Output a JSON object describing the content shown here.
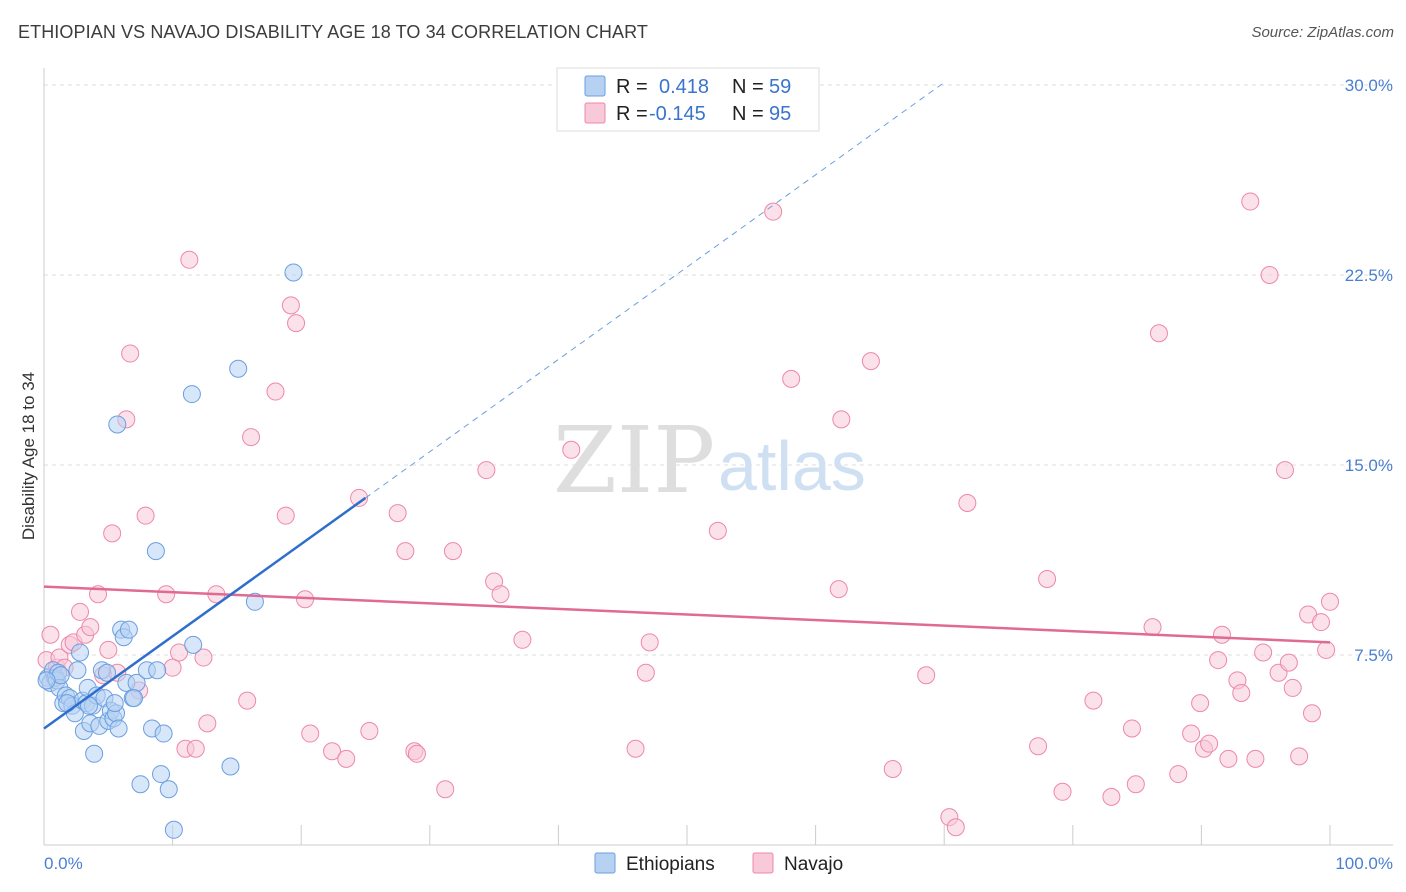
{
  "title": "ETHIOPIAN VS NAVAJO DISABILITY AGE 18 TO 34 CORRELATION CHART",
  "source": "Source: ZipAtlas.com",
  "colors": {
    "ethiopians": "#6a9fe0",
    "ethiopians_fill": "#b7d1f3",
    "ethiopians_line": "#2f6fcc",
    "navajo": "#ee88a8",
    "navajo_fill": "#f8c9d8",
    "navajo_line": "#e06a92",
    "tick_text": "#4a7fd0",
    "grid": "#dddddd"
  },
  "legend": {
    "rows": [
      {
        "r_label": "R =",
        "r_value": "0.418",
        "n_label": "N =",
        "n_value": "59"
      },
      {
        "r_label": "R =",
        "r_value": "-0.145",
        "n_label": "N =",
        "n_value": "95"
      }
    ]
  },
  "watermark": {
    "zip": "ZIP",
    "atlas": "atlas"
  },
  "chart_data": {
    "type": "scatter",
    "title": "ETHIOPIAN VS NAVAJO DISABILITY AGE 18 TO 34 CORRELATION CHART",
    "xlabel": "",
    "ylabel": "Disability Age 18 to 34",
    "xlim": [
      0,
      100
    ],
    "ylim": [
      0,
      30
    ],
    "x_tick_labels": [
      "0.0%",
      "100.0%"
    ],
    "y_ticks": [
      7.5,
      15.0,
      22.5,
      30.0
    ],
    "y_tick_labels": [
      "7.5%",
      "15.0%",
      "22.5%",
      "30.0%"
    ],
    "grid": true,
    "legend_position": "bottom",
    "series": [
      {
        "name": "Ethiopians",
        "r": 0.418,
        "n": 59,
        "trend": {
          "x": [
            0,
            25
          ],
          "y": [
            4.6,
            13.7
          ]
        },
        "trend_extension": {
          "x": [
            25,
            70
          ],
          "y": [
            13.7,
            30.1
          ]
        },
        "points": [
          [
            0.3,
            6.6
          ],
          [
            0.5,
            6.4
          ],
          [
            0.7,
            6.9
          ],
          [
            0.9,
            6.6
          ],
          [
            1.0,
            6.5
          ],
          [
            1.1,
            6.8
          ],
          [
            1.2,
            6.2
          ],
          [
            1.3,
            6.7
          ],
          [
            1.5,
            5.6
          ],
          [
            1.7,
            5.9
          ],
          [
            2.0,
            5.8
          ],
          [
            2.2,
            5.5
          ],
          [
            2.4,
            5.2
          ],
          [
            2.6,
            6.9
          ],
          [
            2.8,
            7.6
          ],
          [
            3.0,
            5.7
          ],
          [
            3.1,
            4.5
          ],
          [
            3.3,
            5.6
          ],
          [
            3.4,
            6.2
          ],
          [
            3.6,
            4.8
          ],
          [
            3.8,
            5.5
          ],
          [
            3.9,
            3.6
          ],
          [
            4.1,
            5.9
          ],
          [
            4.3,
            4.7
          ],
          [
            4.5,
            6.9
          ],
          [
            4.7,
            5.8
          ],
          [
            4.9,
            6.8
          ],
          [
            5.0,
            4.9
          ],
          [
            5.2,
            5.3
          ],
          [
            5.4,
            5.0
          ],
          [
            5.6,
            5.2
          ],
          [
            5.8,
            4.6
          ],
          [
            6.0,
            8.5
          ],
          [
            6.2,
            8.2
          ],
          [
            6.4,
            6.4
          ],
          [
            6.6,
            8.5
          ],
          [
            6.9,
            5.8
          ],
          [
            7.2,
            6.4
          ],
          [
            7.5,
            2.4
          ],
          [
            8.0,
            6.9
          ],
          [
            8.4,
            4.6
          ],
          [
            8.8,
            6.9
          ],
          [
            9.1,
            2.8
          ],
          [
            9.3,
            4.4
          ],
          [
            9.7,
            2.2
          ],
          [
            10.1,
            0.6
          ],
          [
            11.6,
            7.9
          ],
          [
            5.7,
            16.6
          ],
          [
            8.7,
            11.6
          ],
          [
            11.5,
            17.8
          ],
          [
            14.5,
            3.1
          ],
          [
            15.1,
            18.8
          ],
          [
            16.4,
            9.6
          ],
          [
            19.4,
            22.6
          ],
          [
            0.2,
            6.5
          ],
          [
            1.8,
            5.6
          ],
          [
            3.5,
            5.5
          ],
          [
            5.5,
            5.6
          ],
          [
            7.0,
            5.8
          ]
        ]
      },
      {
        "name": "Navajo",
        "r": -0.145,
        "n": 95,
        "trend": {
          "x": [
            0,
            100
          ],
          "y": [
            10.2,
            8.0
          ]
        },
        "points": [
          [
            0.2,
            7.3
          ],
          [
            0.5,
            8.3
          ],
          [
            0.8,
            6.6
          ],
          [
            1.0,
            7.0
          ],
          [
            1.2,
            7.4
          ],
          [
            1.6,
            7.0
          ],
          [
            2.0,
            7.9
          ],
          [
            2.3,
            8.0
          ],
          [
            2.8,
            9.2
          ],
          [
            3.2,
            8.3
          ],
          [
            3.6,
            8.6
          ],
          [
            4.2,
            9.9
          ],
          [
            4.6,
            6.7
          ],
          [
            5.0,
            7.7
          ],
          [
            5.3,
            12.3
          ],
          [
            5.7,
            6.8
          ],
          [
            6.4,
            16.8
          ],
          [
            6.7,
            19.4
          ],
          [
            7.4,
            6.1
          ],
          [
            7.9,
            13.0
          ],
          [
            9.5,
            9.9
          ],
          [
            10.0,
            7.0
          ],
          [
            10.5,
            7.6
          ],
          [
            11.0,
            3.8
          ],
          [
            11.3,
            23.1
          ],
          [
            11.8,
            3.8
          ],
          [
            12.4,
            7.4
          ],
          [
            12.7,
            4.8
          ],
          [
            13.4,
            9.9
          ],
          [
            15.8,
            5.7
          ],
          [
            16.1,
            16.1
          ],
          [
            18.0,
            17.9
          ],
          [
            18.8,
            13.0
          ],
          [
            19.2,
            21.3
          ],
          [
            19.6,
            20.6
          ],
          [
            20.3,
            9.7
          ],
          [
            20.7,
            4.4
          ],
          [
            22.4,
            3.7
          ],
          [
            23.5,
            3.4
          ],
          [
            24.5,
            13.7
          ],
          [
            25.3,
            4.5
          ],
          [
            27.5,
            13.1
          ],
          [
            28.1,
            11.6
          ],
          [
            28.8,
            3.7
          ],
          [
            29.0,
            3.6
          ],
          [
            31.2,
            2.2
          ],
          [
            31.8,
            11.6
          ],
          [
            34.4,
            14.8
          ],
          [
            35.0,
            10.4
          ],
          [
            35.5,
            9.9
          ],
          [
            37.2,
            8.1
          ],
          [
            41.0,
            15.6
          ],
          [
            46.0,
            3.8
          ],
          [
            46.8,
            6.8
          ],
          [
            47.1,
            8.0
          ],
          [
            52.4,
            12.4
          ],
          [
            56.7,
            25.0
          ],
          [
            58.1,
            18.4
          ],
          [
            61.8,
            10.1
          ],
          [
            62.0,
            16.8
          ],
          [
            64.3,
            19.1
          ],
          [
            66.0,
            3.0
          ],
          [
            68.6,
            6.7
          ],
          [
            70.4,
            1.1
          ],
          [
            70.9,
            0.7
          ],
          [
            71.8,
            13.5
          ],
          [
            77.3,
            3.9
          ],
          [
            78.0,
            10.5
          ],
          [
            79.2,
            2.1
          ],
          [
            81.6,
            5.7
          ],
          [
            83.0,
            1.9
          ],
          [
            84.6,
            4.6
          ],
          [
            84.9,
            2.4
          ],
          [
            86.2,
            8.6
          ],
          [
            86.7,
            20.2
          ],
          [
            88.2,
            2.8
          ],
          [
            89.2,
            4.4
          ],
          [
            89.9,
            5.6
          ],
          [
            90.2,
            3.8
          ],
          [
            90.6,
            4.0
          ],
          [
            91.3,
            7.3
          ],
          [
            91.6,
            8.3
          ],
          [
            92.1,
            3.4
          ],
          [
            92.8,
            6.5
          ],
          [
            93.1,
            6.0
          ],
          [
            93.8,
            25.4
          ],
          [
            94.2,
            3.4
          ],
          [
            94.8,
            7.6
          ],
          [
            95.3,
            22.5
          ],
          [
            96.0,
            6.8
          ],
          [
            96.5,
            14.8
          ],
          [
            96.8,
            7.2
          ],
          [
            97.1,
            6.2
          ],
          [
            97.6,
            3.5
          ],
          [
            98.3,
            9.1
          ],
          [
            98.6,
            5.2
          ],
          [
            99.3,
            8.8
          ],
          [
            99.7,
            7.7
          ],
          [
            100.0,
            9.6
          ]
        ]
      }
    ]
  }
}
